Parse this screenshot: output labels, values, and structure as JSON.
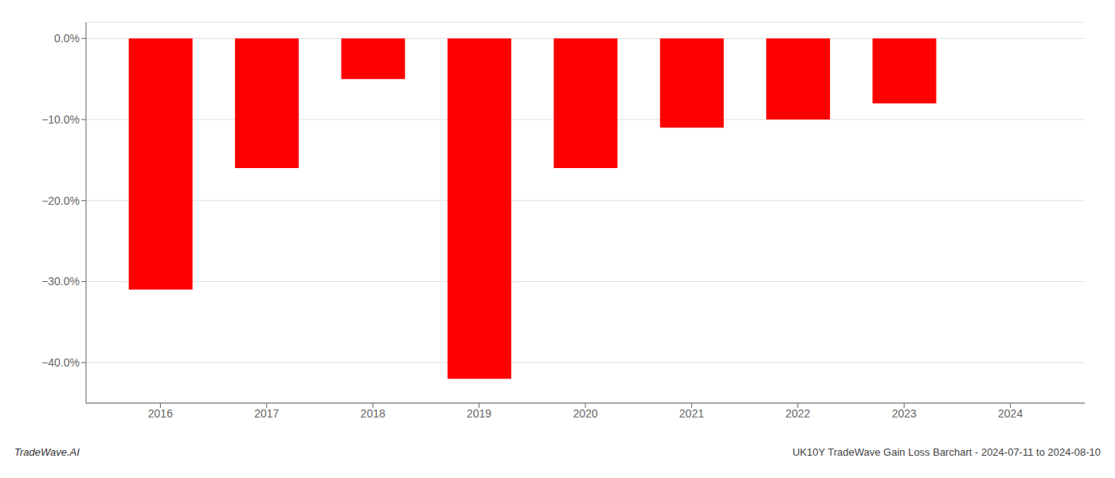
{
  "chart_data": {
    "type": "bar",
    "x": [
      2016,
      2017,
      2018,
      2019,
      2020,
      2021,
      2022,
      2023
    ],
    "values": [
      -31.0,
      -16.0,
      -5.0,
      -42.0,
      -16.0,
      -11.0,
      -10.0,
      -8.0
    ],
    "color": "#ff0000",
    "xlim": [
      2015.3,
      2024.7
    ],
    "xticks": [
      2016,
      2017,
      2018,
      2019,
      2020,
      2021,
      2022,
      2023,
      2024
    ],
    "ylim": [
      -45,
      2
    ],
    "yticks": [
      {
        "value": 0.0,
        "label": "0.0%"
      },
      {
        "value": -10.0,
        "label": "−10.0%"
      },
      {
        "value": -20.0,
        "label": "−20.0%"
      },
      {
        "value": -30.0,
        "label": "−30.0%"
      },
      {
        "value": -40.0,
        "label": "−40.0%"
      }
    ],
    "grid": true,
    "annotations": [
      "TradeWave.AI",
      "UK10Y TradeWave Gain Loss Barchart - 2024-07-11 to 2024-08-10"
    ]
  }
}
